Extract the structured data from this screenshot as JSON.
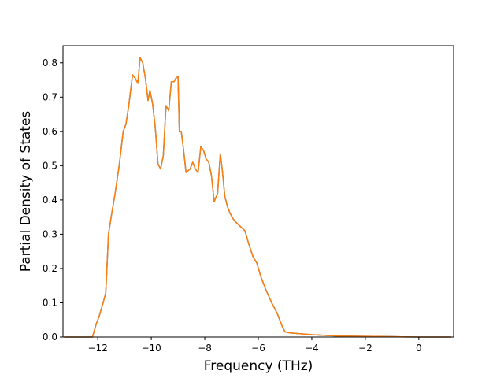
{
  "chart_data": {
    "type": "line",
    "title": "",
    "xlabel": "Frequency (THz)",
    "ylabel": "Partial Density of States",
    "xlim": [
      -13.3,
      1.3
    ],
    "ylim": [
      0.0,
      0.85
    ],
    "xticks": [
      -12,
      -10,
      -8,
      -6,
      -4,
      -2,
      0
    ],
    "xtick_labels": [
      "−12",
      "−10",
      "−8",
      "−6",
      "−4",
      "−2",
      "0"
    ],
    "yticks": [
      0.0,
      0.1,
      0.2,
      0.3,
      0.4,
      0.5,
      0.6,
      0.7,
      0.8
    ],
    "ytick_labels": [
      "0.0",
      "0.1",
      "0.2",
      "0.3",
      "0.4",
      "0.5",
      "0.6",
      "0.7",
      "0.8"
    ],
    "grid": false,
    "legend": "none",
    "series": [
      {
        "color": "#1f77b4",
        "x": [
          -13.25,
          -12.2,
          -12.05,
          -11.95,
          -11.8,
          -11.7,
          -11.6,
          -11.5,
          -11.35,
          -11.2,
          -11.05,
          -10.95,
          -10.85,
          -10.7,
          -10.6,
          -10.5,
          -10.42,
          -10.32,
          -10.22,
          -10.12,
          -10.05,
          -9.95,
          -9.85,
          -9.75,
          -9.65,
          -9.55,
          -9.45,
          -9.35,
          -9.25,
          -9.15,
          -9.08,
          -9.0,
          -8.95,
          -8.88,
          -8.8,
          -8.7,
          -8.55,
          -8.45,
          -8.35,
          -8.25,
          -8.15,
          -8.05,
          -7.95,
          -7.85,
          -7.75,
          -7.65,
          -7.52,
          -7.42,
          -7.35,
          -7.25,
          -7.15,
          -7.05,
          -6.9,
          -6.7,
          -6.5,
          -6.35,
          -6.2,
          -6.05,
          -5.9,
          -5.7,
          -5.5,
          -5.3,
          -5.1,
          -5.0,
          -4.8,
          -4.5,
          -4.0,
          -3.5,
          -3.0,
          -2.0,
          -1.0,
          0.0,
          1.2
        ],
        "y": [
          0.0,
          0.0,
          0.04,
          0.06,
          0.1,
          0.13,
          0.3,
          0.35,
          0.42,
          0.5,
          0.6,
          0.62,
          0.67,
          0.765,
          0.755,
          0.74,
          0.815,
          0.8,
          0.755,
          0.69,
          0.72,
          0.68,
          0.61,
          0.505,
          0.49,
          0.53,
          0.675,
          0.66,
          0.745,
          0.745,
          0.755,
          0.76,
          0.6,
          0.6,
          0.55,
          0.48,
          0.49,
          0.51,
          0.49,
          0.48,
          0.555,
          0.545,
          0.52,
          0.51,
          0.47,
          0.395,
          0.42,
          0.535,
          0.49,
          0.41,
          0.38,
          0.36,
          0.34,
          0.325,
          0.31,
          0.27,
          0.235,
          0.215,
          0.175,
          0.135,
          0.1,
          0.07,
          0.03,
          0.015,
          0.012,
          0.01,
          0.007,
          0.005,
          0.003,
          0.002,
          0.001,
          0.0,
          0.0
        ]
      },
      {
        "color": "#ff7f0e",
        "x": [
          -13.25,
          -12.2,
          -12.05,
          -11.95,
          -11.8,
          -11.7,
          -11.6,
          -11.5,
          -11.35,
          -11.2,
          -11.05,
          -10.95,
          -10.85,
          -10.7,
          -10.6,
          -10.5,
          -10.42,
          -10.32,
          -10.22,
          -10.12,
          -10.05,
          -9.95,
          -9.85,
          -9.75,
          -9.65,
          -9.55,
          -9.45,
          -9.35,
          -9.25,
          -9.15,
          -9.08,
          -9.0,
          -8.95,
          -8.88,
          -8.8,
          -8.7,
          -8.55,
          -8.45,
          -8.35,
          -8.25,
          -8.15,
          -8.05,
          -7.95,
          -7.85,
          -7.75,
          -7.65,
          -7.52,
          -7.42,
          -7.35,
          -7.25,
          -7.15,
          -7.05,
          -6.9,
          -6.7,
          -6.5,
          -6.35,
          -6.2,
          -6.05,
          -5.9,
          -5.7,
          -5.5,
          -5.3,
          -5.1,
          -5.0,
          -4.8,
          -4.5,
          -4.0,
          -3.5,
          -3.0,
          -2.0,
          -1.0,
          0.0,
          1.2
        ],
        "y": [
          0.0,
          0.0,
          0.04,
          0.06,
          0.1,
          0.13,
          0.3,
          0.35,
          0.42,
          0.5,
          0.6,
          0.62,
          0.67,
          0.765,
          0.755,
          0.74,
          0.815,
          0.8,
          0.755,
          0.69,
          0.72,
          0.68,
          0.61,
          0.505,
          0.49,
          0.53,
          0.675,
          0.66,
          0.745,
          0.745,
          0.755,
          0.76,
          0.6,
          0.6,
          0.55,
          0.48,
          0.49,
          0.51,
          0.49,
          0.48,
          0.555,
          0.545,
          0.52,
          0.51,
          0.47,
          0.395,
          0.42,
          0.535,
          0.49,
          0.41,
          0.38,
          0.36,
          0.34,
          0.325,
          0.31,
          0.27,
          0.235,
          0.215,
          0.175,
          0.135,
          0.1,
          0.07,
          0.03,
          0.015,
          0.012,
          0.01,
          0.007,
          0.005,
          0.003,
          0.002,
          0.001,
          0.0,
          0.0
        ]
      }
    ]
  }
}
